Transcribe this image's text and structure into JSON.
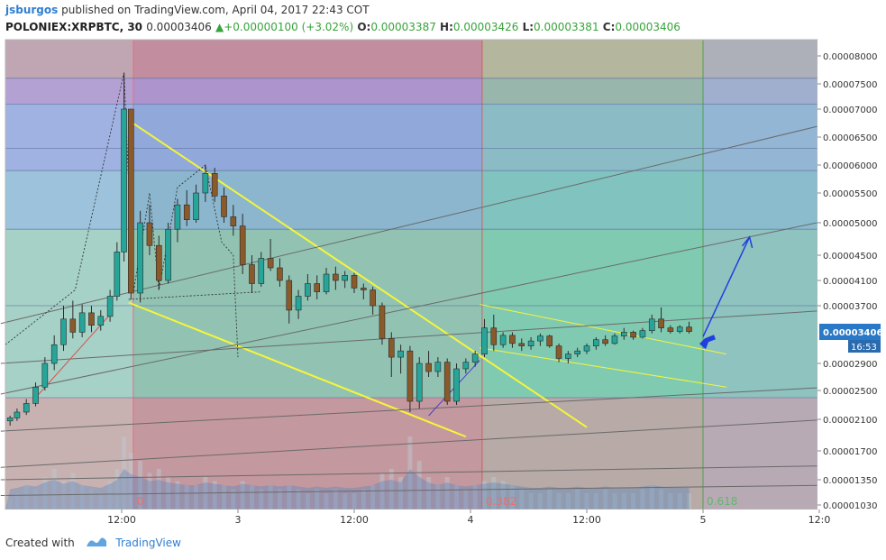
{
  "header": {
    "author": "jsburgos",
    "published": "published on TradingView.com, April 04, 2017 22:43 COT",
    "symbol": "POLONIEX:XRPBTC, 30",
    "last": "0.00003406",
    "change_arrow": "▲",
    "change": "+0.00000100 (+3.02%)",
    "o_label": "O:",
    "o": "0.00003387",
    "h_label": "H:",
    "h": "0.00003426",
    "l_label": "L:",
    "l": "0.00003381",
    "c_label": "C:",
    "c": "0.00003406"
  },
  "footer": {
    "created_with": "Created with",
    "brand": "TradingView"
  },
  "colors": {
    "up": "#26a69a",
    "down": "#8b5a2b",
    "trend": "#f5f53a",
    "arrow": "#1f3fe0",
    "price_tag": "#2979c6"
  },
  "chart_data": {
    "type": "candlestick",
    "price_ticks": [
      "0.00008000",
      "0.00007500",
      "0.00007000",
      "0.00006500",
      "0.00006000",
      "0.00005500",
      "0.00005000",
      "0.00004500",
      "0.00004100",
      "0.00003700",
      "0.00003406",
      "0.00002900",
      "0.00002500",
      "0.00002100",
      "0.00001700",
      "0.00001350",
      "0.00001030"
    ],
    "price_tick_values": [
      8e-05,
      7.5e-05,
      7e-05,
      6.5e-05,
      6e-05,
      5.5e-05,
      5e-05,
      4.5e-05,
      4.1e-05,
      3.7e-05,
      3.406e-05,
      2.9e-05,
      2.5e-05,
      2.1e-05,
      1.7e-05,
      1.35e-05,
      1.03e-05
    ],
    "time_ticks": [
      "12:00",
      "3",
      "12:00",
      "4",
      "12:00",
      "5",
      "12:0"
    ],
    "time_tick_values": [
      0.5,
      1,
      1.5,
      2,
      2.5,
      3,
      3.5
    ],
    "last_price_label": "0.00003406",
    "countdown": "16:53",
    "fib_labels": [
      {
        "text": "0",
        "t": 0.55,
        "color": "#e87070"
      },
      {
        "text": "0.382",
        "t": 2.05,
        "color": "#e87070"
      },
      {
        "text": "0.618",
        "t": 3.0,
        "color": "#5fb86a"
      }
    ],
    "fib_time_bounds": [
      0.55,
      2.05,
      3.0
    ],
    "horizontal_levels": [
      7.6e-05,
      7.1e-05,
      6.3e-05,
      5.9e-05,
      4.9e-05,
      3.7e-05,
      2.4e-05
    ],
    "candles": [
      {
        "t": 0.02,
        "o": 2.08e-05,
        "h": 2.15e-05,
        "l": 2.02e-05,
        "c": 2.12e-05
      },
      {
        "t": 0.05,
        "o": 2.12e-05,
        "h": 2.25e-05,
        "l": 2.08e-05,
        "c": 2.2e-05
      },
      {
        "t": 0.09,
        "o": 2.2e-05,
        "h": 2.38e-05,
        "l": 2.16e-05,
        "c": 2.32e-05
      },
      {
        "t": 0.13,
        "o": 2.32e-05,
        "h": 2.62e-05,
        "l": 2.28e-05,
        "c": 2.55e-05
      },
      {
        "t": 0.17,
        "o": 2.55e-05,
        "h": 3e-05,
        "l": 2.5e-05,
        "c": 2.9e-05
      },
      {
        "t": 0.21,
        "o": 2.9e-05,
        "h": 3.35e-05,
        "l": 2.8e-05,
        "c": 3.2e-05
      },
      {
        "t": 0.25,
        "o": 3.2e-05,
        "h": 3.7e-05,
        "l": 3.1e-05,
        "c": 3.55e-05
      },
      {
        "t": 0.29,
        "o": 3.55e-05,
        "h": 3.78e-05,
        "l": 3.3e-05,
        "c": 3.4e-05
      },
      {
        "t": 0.33,
        "o": 3.4e-05,
        "h": 3.72e-05,
        "l": 3.32e-05,
        "c": 3.62e-05
      },
      {
        "t": 0.37,
        "o": 3.62e-05,
        "h": 3.7e-05,
        "l": 3.4e-05,
        "c": 3.48e-05
      },
      {
        "t": 0.41,
        "o": 3.48e-05,
        "h": 3.65e-05,
        "l": 3.42e-05,
        "c": 3.58e-05
      },
      {
        "t": 0.45,
        "o": 3.58e-05,
        "h": 3.95e-05,
        "l": 3.52e-05,
        "c": 3.85e-05
      },
      {
        "t": 0.48,
        "o": 3.85e-05,
        "h": 4.7e-05,
        "l": 3.78e-05,
        "c": 4.55e-05
      },
      {
        "t": 0.51,
        "o": 4.55e-05,
        "h": 7.7e-05,
        "l": 4.4e-05,
        "c": 7e-05
      },
      {
        "t": 0.54,
        "o": 7e-05,
        "h": 7e-05,
        "l": 3.8e-05,
        "c": 3.9e-05
      },
      {
        "t": 0.58,
        "o": 3.9e-05,
        "h": 5.2e-05,
        "l": 3.75e-05,
        "c": 5e-05
      },
      {
        "t": 0.62,
        "o": 5e-05,
        "h": 5.3e-05,
        "l": 4.5e-05,
        "c": 4.65e-05
      },
      {
        "t": 0.66,
        "o": 4.65e-05,
        "h": 4.8e-05,
        "l": 3.95e-05,
        "c": 4.1e-05
      },
      {
        "t": 0.7,
        "o": 4.1e-05,
        "h": 5e-05,
        "l": 4.05e-05,
        "c": 4.9e-05
      },
      {
        "t": 0.74,
        "o": 4.9e-05,
        "h": 5.4e-05,
        "l": 4.7e-05,
        "c": 5.3e-05
      },
      {
        "t": 0.78,
        "o": 5.3e-05,
        "h": 5.55e-05,
        "l": 4.95e-05,
        "c": 5.05e-05
      },
      {
        "t": 0.82,
        "o": 5.05e-05,
        "h": 5.65e-05,
        "l": 5e-05,
        "c": 5.5e-05
      },
      {
        "t": 0.86,
        "o": 5.5e-05,
        "h": 6e-05,
        "l": 5.35e-05,
        "c": 5.85e-05
      },
      {
        "t": 0.9,
        "o": 5.85e-05,
        "h": 5.95e-05,
        "l": 5.35e-05,
        "c": 5.45e-05
      },
      {
        "t": 0.94,
        "o": 5.45e-05,
        "h": 5.6e-05,
        "l": 5e-05,
        "c": 5.1e-05
      },
      {
        "t": 0.98,
        "o": 5.1e-05,
        "h": 5.3e-05,
        "l": 4.8e-05,
        "c": 4.95e-05
      },
      {
        "t": 1.02,
        "o": 4.95e-05,
        "h": 5.15e-05,
        "l": 4.2e-05,
        "c": 4.35e-05
      },
      {
        "t": 1.06,
        "o": 4.35e-05,
        "h": 4.5e-05,
        "l": 3.9e-05,
        "c": 4.05e-05
      },
      {
        "t": 1.1,
        "o": 4.05e-05,
        "h": 4.55e-05,
        "l": 4e-05,
        "c": 4.45e-05
      },
      {
        "t": 1.14,
        "o": 4.45e-05,
        "h": 4.75e-05,
        "l": 4.25e-05,
        "c": 4.3e-05
      },
      {
        "t": 1.18,
        "o": 4.3e-05,
        "h": 4.45e-05,
        "l": 4e-05,
        "c": 4.1e-05
      },
      {
        "t": 1.22,
        "o": 4.1e-05,
        "h": 4.18e-05,
        "l": 3.5e-05,
        "c": 3.65e-05
      },
      {
        "t": 1.26,
        "o": 3.65e-05,
        "h": 3.95e-05,
        "l": 3.55e-05,
        "c": 3.85e-05
      },
      {
        "t": 1.3,
        "o": 3.85e-05,
        "h": 4.2e-05,
        "l": 3.78e-05,
        "c": 4.05e-05
      },
      {
        "t": 1.34,
        "o": 4.05e-05,
        "h": 4.18e-05,
        "l": 3.8e-05,
        "c": 3.92e-05
      },
      {
        "t": 1.38,
        "o": 3.92e-05,
        "h": 4.3e-05,
        "l": 3.88e-05,
        "c": 4.2e-05
      },
      {
        "t": 1.42,
        "o": 4.2e-05,
        "h": 4.32e-05,
        "l": 3.95e-05,
        "c": 4.1e-05
      },
      {
        "t": 1.46,
        "o": 4.1e-05,
        "h": 4.25e-05,
        "l": 3.98e-05,
        "c": 4.18e-05
      },
      {
        "t": 1.5,
        "o": 4.18e-05,
        "h": 4.22e-05,
        "l": 3.9e-05,
        "c": 3.98e-05
      },
      {
        "t": 1.54,
        "o": 3.98e-05,
        "h": 4.05e-05,
        "l": 3.8e-05,
        "c": 3.95e-05
      },
      {
        "t": 1.58,
        "o": 3.95e-05,
        "h": 4e-05,
        "l": 3.6e-05,
        "c": 3.7e-05
      },
      {
        "t": 1.62,
        "o": 3.7e-05,
        "h": 3.75e-05,
        "l": 3.2e-05,
        "c": 3.3e-05
      },
      {
        "t": 1.66,
        "o": 3.3e-05,
        "h": 3.4e-05,
        "l": 2.7e-05,
        "c": 3e-05
      },
      {
        "t": 1.7,
        "o": 3e-05,
        "h": 3.2e-05,
        "l": 2.75e-05,
        "c": 3.1e-05
      },
      {
        "t": 1.74,
        "o": 3.1e-05,
        "h": 3.18e-05,
        "l": 2.2e-05,
        "c": 2.35e-05
      },
      {
        "t": 1.78,
        "o": 2.35e-05,
        "h": 3e-05,
        "l": 2.25e-05,
        "c": 2.9e-05
      },
      {
        "t": 1.82,
        "o": 2.9e-05,
        "h": 3.1e-05,
        "l": 2.7e-05,
        "c": 2.78e-05
      },
      {
        "t": 1.86,
        "o": 2.78e-05,
        "h": 3e-05,
        "l": 2.7e-05,
        "c": 2.92e-05
      },
      {
        "t": 1.9,
        "o": 2.92e-05,
        "h": 2.98e-05,
        "l": 2.3e-05,
        "c": 2.35e-05
      },
      {
        "t": 1.94,
        "o": 2.35e-05,
        "h": 2.9e-05,
        "l": 2.3e-05,
        "c": 2.82e-05
      },
      {
        "t": 1.98,
        "o": 2.82e-05,
        "h": 2.98e-05,
        "l": 2.75e-05,
        "c": 2.92e-05
      },
      {
        "t": 2.02,
        "o": 2.92e-05,
        "h": 3.1e-05,
        "l": 2.85e-05,
        "c": 3.05e-05
      },
      {
        "t": 2.06,
        "o": 3.05e-05,
        "h": 3.55e-05,
        "l": 3e-05,
        "c": 3.45e-05
      },
      {
        "t": 2.1,
        "o": 3.45e-05,
        "h": 3.6e-05,
        "l": 3.1e-05,
        "c": 3.2e-05
      },
      {
        "t": 2.14,
        "o": 3.2e-05,
        "h": 3.4e-05,
        "l": 3.15e-05,
        "c": 3.35e-05
      },
      {
        "t": 2.18,
        "o": 3.35e-05,
        "h": 3.4e-05,
        "l": 3.15e-05,
        "c": 3.22e-05
      },
      {
        "t": 2.22,
        "o": 3.22e-05,
        "h": 3.3e-05,
        "l": 3.1e-05,
        "c": 3.18e-05
      },
      {
        "t": 2.26,
        "o": 3.18e-05,
        "h": 3.32e-05,
        "l": 3.12e-05,
        "c": 3.26e-05
      },
      {
        "t": 2.3,
        "o": 3.26e-05,
        "h": 3.38e-05,
        "l": 3.18e-05,
        "c": 3.34e-05
      },
      {
        "t": 2.34,
        "o": 3.34e-05,
        "h": 3.36e-05,
        "l": 3.15e-05,
        "c": 3.18e-05
      },
      {
        "t": 2.38,
        "o": 3.18e-05,
        "h": 3.22e-05,
        "l": 2.92e-05,
        "c": 2.98e-05
      },
      {
        "t": 2.42,
        "o": 2.98e-05,
        "h": 3.1e-05,
        "l": 2.9e-05,
        "c": 3.05e-05
      },
      {
        "t": 2.46,
        "o": 3.05e-05,
        "h": 3.15e-05,
        "l": 3e-05,
        "c": 3.1e-05
      },
      {
        "t": 2.5,
        "o": 3.1e-05,
        "h": 3.22e-05,
        "l": 3.05e-05,
        "c": 3.18e-05
      },
      {
        "t": 2.54,
        "o": 3.18e-05,
        "h": 3.32e-05,
        "l": 3.12e-05,
        "c": 3.28e-05
      },
      {
        "t": 2.58,
        "o": 3.28e-05,
        "h": 3.35e-05,
        "l": 3.18e-05,
        "c": 3.22e-05
      },
      {
        "t": 2.62,
        "o": 3.22e-05,
        "h": 3.38e-05,
        "l": 3.2e-05,
        "c": 3.34e-05
      },
      {
        "t": 2.66,
        "o": 3.34e-05,
        "h": 3.45e-05,
        "l": 3.28e-05,
        "c": 3.4e-05
      },
      {
        "t": 2.7,
        "o": 3.4e-05,
        "h": 3.42e-05,
        "l": 3.28e-05,
        "c": 3.32e-05
      },
      {
        "t": 2.74,
        "o": 3.32e-05,
        "h": 3.45e-05,
        "l": 3.3e-05,
        "c": 3.42e-05
      },
      {
        "t": 2.78,
        "o": 3.42e-05,
        "h": 3.6e-05,
        "l": 3.38e-05,
        "c": 3.55e-05
      },
      {
        "t": 2.82,
        "o": 3.55e-05,
        "h": 3.68e-05,
        "l": 3.4e-05,
        "c": 3.45e-05
      },
      {
        "t": 2.86,
        "o": 3.45e-05,
        "h": 3.48e-05,
        "l": 3.38e-05,
        "c": 3.41e-05
      },
      {
        "t": 2.9,
        "o": 3.41e-05,
        "h": 3.48e-05,
        "l": 3.38e-05,
        "c": 3.46e-05
      },
      {
        "t": 2.94,
        "o": 3.46e-05,
        "h": 3.52e-05,
        "l": 3.38e-05,
        "c": 3.41e-05
      }
    ],
    "volume_rel": [
      0.15,
      0.2,
      0.3,
      0.25,
      0.4,
      0.5,
      0.35,
      0.45,
      0.3,
      0.25,
      0.2,
      0.35,
      0.5,
      0.9,
      0.7,
      0.6,
      0.45,
      0.5,
      0.4,
      0.35,
      0.3,
      0.3,
      0.4,
      0.35,
      0.3,
      0.25,
      0.35,
      0.3,
      0.25,
      0.3,
      0.25,
      0.3,
      0.25,
      0.2,
      0.25,
      0.2,
      0.25,
      0.2,
      0.2,
      0.25,
      0.3,
      0.45,
      0.5,
      0.4,
      0.9,
      0.6,
      0.4,
      0.3,
      0.4,
      0.3,
      0.25,
      0.3,
      0.35,
      0.4,
      0.35,
      0.3,
      0.25,
      0.2,
      0.2,
      0.25,
      0.2,
      0.2,
      0.25,
      0.2,
      0.2,
      0.25,
      0.2,
      0.2,
      0.2,
      0.25,
      0.3,
      0.25,
      0.2,
      0.2,
      0.2
    ],
    "trendlines": [
      {
        "t1": 0.53,
        "p1": 6.8e-05,
        "t2": 2.5,
        "p2": 2e-05,
        "color": "#f5f53a",
        "width": 2
      },
      {
        "t1": 0.53,
        "p1": 3.75e-05,
        "t2": 1.98,
        "p2": 1.88e-05,
        "color": "#f5f53a",
        "width": 2
      },
      {
        "t1": 2.04,
        "p1": 3.72e-05,
        "t2": 3.1,
        "p2": 3.05e-05,
        "color": "#f5f53a",
        "width": 1
      },
      {
        "t1": 2.04,
        "p1": 3.15e-05,
        "t2": 3.1,
        "p2": 2.55e-05,
        "color": "#f5f53a",
        "width": 1
      },
      {
        "t1": -0.02,
        "p1": 2.9e-05,
        "t2": 3.55,
        "p2": 3.65e-05,
        "color": "#6a6a6a",
        "width": 1
      },
      {
        "t1": -0.02,
        "p1": 1.95e-05,
        "t2": 3.55,
        "p2": 2.55e-05,
        "color": "#6a6a6a",
        "width": 1
      },
      {
        "t1": -0.02,
        "p1": 1.5e-05,
        "t2": 3.55,
        "p2": 2.1e-05,
        "color": "#6a6a6a",
        "width": 1
      },
      {
        "t1": -0.02,
        "p1": 2.45e-05,
        "t2": 3.55,
        "p2": 5.05e-05,
        "color": "#6a6a6a",
        "width": 1
      },
      {
        "t1": -0.02,
        "p1": 3.5e-05,
        "t2": 3.55,
        "p2": 6.75e-05,
        "color": "#6a6a6a",
        "width": 1
      },
      {
        "t1": -0.02,
        "p1": 1.35e-05,
        "t2": 3.55,
        "p2": 1.52e-05,
        "color": "#6a6a6a",
        "width": 1
      },
      {
        "t1": -0.02,
        "p1": 1.15e-05,
        "t2": 3.55,
        "p2": 1.28e-05,
        "color": "#6a6a6a",
        "width": 1
      },
      {
        "t1": 0.13,
        "p1": 2.4e-05,
        "t2": 0.45,
        "p2": 3.6e-05,
        "color": "#d9534f",
        "width": 1
      },
      {
        "t1": 1.82,
        "p1": 2.15e-05,
        "t2": 2.04,
        "p2": 2.95e-05,
        "color": "#4a3fd0",
        "width": 1
      }
    ],
    "projection_arrow": [
      {
        "t": 3.0,
        "p": 3.33e-05
      },
      {
        "t": 3.2,
        "p": 4.78e-05
      }
    ]
  }
}
